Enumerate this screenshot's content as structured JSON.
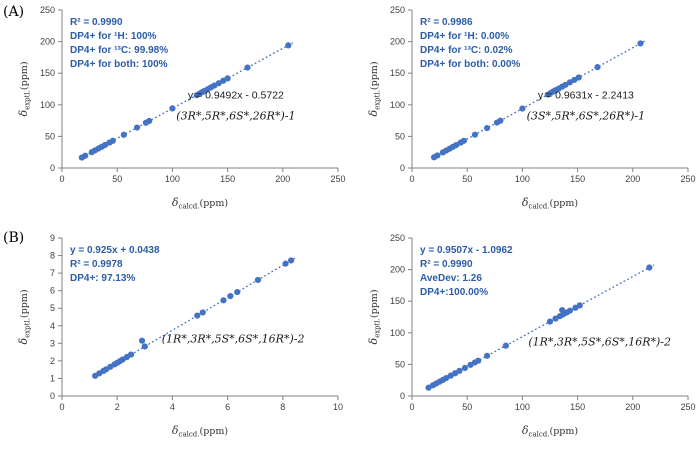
{
  "figure": {
    "panel_a_label": "(A)",
    "panel_b_label": "(B)"
  },
  "colors": {
    "marker": "#4472C4",
    "trend": "#4472C4",
    "blue_text": "#2A5CAA",
    "black_text": "#1a1a1a",
    "axis": "#808080",
    "tick_text": "#404040"
  },
  "chart_data": [
    {
      "type": "scatter",
      "panel": "A-left",
      "xlabel": {
        "sym": "δ",
        "sub": "calcd.",
        "unit": "(ppm)"
      },
      "ylabel": {
        "sym": "δ",
        "sub": "exptl.",
        "unit": "(ppm)"
      },
      "xlim": [
        0,
        250
      ],
      "ylim": [
        0,
        250
      ],
      "xticks": [
        0,
        50,
        100,
        150,
        200,
        250
      ],
      "yticks": [
        0,
        50,
        100,
        150,
        200,
        250
      ],
      "grid": false,
      "legend": "none",
      "blue_annotations": [
        "R² = 0.9990",
        "DP4+ for ¹H: 100%",
        "DP4+ for ¹³C: 99.98%",
        "DP4+ for both: 100%"
      ],
      "black_annotations": [
        "y = 0.9492x - 0.5722",
        "(3R*,5R*,6S*,26R*)-1"
      ],
      "trendline": {
        "slope": 0.9492,
        "intercept": -0.5722
      },
      "points": [
        [
          18,
          16.5
        ],
        [
          21,
          19.4
        ],
        [
          27,
          25.1
        ],
        [
          30,
          27.9
        ],
        [
          33,
          30.8
        ],
        [
          36,
          33.6
        ],
        [
          39,
          36.4
        ],
        [
          43,
          40.2
        ],
        [
          46,
          43.1
        ],
        [
          56,
          52.6
        ],
        [
          68,
          64.0
        ],
        [
          76,
          71.6
        ],
        [
          79,
          74.4
        ],
        [
          100,
          94.3
        ],
        [
          122,
          115.2
        ],
        [
          125,
          118.1
        ],
        [
          127,
          120.0
        ],
        [
          129,
          121.9
        ],
        [
          132,
          124.7
        ],
        [
          135,
          127.6
        ],
        [
          138,
          130.4
        ],
        [
          142,
          134.2
        ],
        [
          146,
          138.0
        ],
        [
          150,
          141.8
        ],
        [
          168,
          158.9
        ],
        [
          205,
          194.0
        ]
      ]
    },
    {
      "type": "scatter",
      "panel": "A-right",
      "xlabel": {
        "sym": "δ",
        "sub": "calcd.",
        "unit": "(ppm)"
      },
      "ylabel": {
        "sym": "δ",
        "sub": "exptl.",
        "unit": "(ppm)"
      },
      "xlim": [
        0,
        250
      ],
      "ylim": [
        0,
        250
      ],
      "xticks": [
        0,
        50,
        100,
        150,
        200,
        250
      ],
      "yticks": [
        0,
        50,
        100,
        150,
        200,
        250
      ],
      "grid": false,
      "legend": "none",
      "blue_annotations": [
        "R² = 0.9986",
        "DP4+ for ¹H: 0.00%",
        "DP4+ for ¹³C: 0.02%",
        "DP4+ for both: 0.00%"
      ],
      "black_annotations": [
        "y = 0.9631x - 2.2413",
        "(3S*,5R*,6S*,26R*)-1"
      ],
      "trendline": {
        "slope": 0.9631,
        "intercept": -2.2413
      },
      "points": [
        [
          20,
          17.0
        ],
        [
          23,
          19.9
        ],
        [
          28,
          24.7
        ],
        [
          31,
          27.6
        ],
        [
          34,
          30.5
        ],
        [
          37,
          33.4
        ],
        [
          40,
          36.3
        ],
        [
          44,
          40.1
        ],
        [
          47,
          43.0
        ],
        [
          57,
          52.7
        ],
        [
          68,
          63.2
        ],
        [
          77,
          71.9
        ],
        [
          80,
          74.8
        ],
        [
          100,
          94.1
        ],
        [
          123,
          116.2
        ],
        [
          126,
          119.1
        ],
        [
          128,
          121.0
        ],
        [
          130,
          123.0
        ],
        [
          133,
          125.9
        ],
        [
          136,
          128.7
        ],
        [
          139,
          131.6
        ],
        [
          143,
          135.5
        ],
        [
          147,
          139.3
        ],
        [
          151,
          143.2
        ],
        [
          168,
          159.6
        ],
        [
          207,
          197.1
        ]
      ]
    },
    {
      "type": "scatter",
      "panel": "B-left",
      "xlabel": {
        "sym": "δ",
        "sub": "calcd.",
        "unit": "(ppm)"
      },
      "ylabel": {
        "sym": "δ",
        "sub": "exptl.",
        "unit": "(ppm)"
      },
      "xlim": [
        0,
        10
      ],
      "ylim": [
        0,
        9
      ],
      "xticks": [
        0,
        2,
        4,
        6,
        8,
        10
      ],
      "yticks": [
        0,
        1,
        2,
        3,
        4,
        5,
        6,
        7,
        8,
        9
      ],
      "grid": false,
      "legend": "none",
      "blue_annotations": [
        "y = 0.925x + 0.0438",
        "R² = 0.9978",
        "DP4+: 97.13%"
      ],
      "black_annotations": [
        "(1R*,3R*,5S*,6S*,16R*)-2"
      ],
      "trendline": {
        "slope": 0.925,
        "intercept": 0.0438
      },
      "points": [
        [
          1.2,
          1.15
        ],
        [
          1.35,
          1.29
        ],
        [
          1.5,
          1.43
        ],
        [
          1.6,
          1.52
        ],
        [
          1.75,
          1.66
        ],
        [
          1.9,
          1.8
        ],
        [
          2.0,
          1.89
        ],
        [
          2.1,
          1.99
        ],
        [
          2.2,
          2.08
        ],
        [
          2.35,
          2.22
        ],
        [
          2.5,
          2.36
        ],
        [
          2.9,
          3.15
        ],
        [
          3.0,
          2.82
        ],
        [
          4.9,
          4.58
        ],
        [
          5.1,
          4.76
        ],
        [
          5.85,
          5.45
        ],
        [
          6.1,
          5.69
        ],
        [
          6.35,
          5.92
        ],
        [
          7.1,
          6.61
        ],
        [
          8.1,
          7.54
        ],
        [
          8.3,
          7.72
        ]
      ]
    },
    {
      "type": "scatter",
      "panel": "B-right",
      "xlabel": {
        "sym": "δ",
        "sub": "calcd.",
        "unit": "(ppm)"
      },
      "ylabel": {
        "sym": "δ",
        "sub": "exptl.",
        "unit": "(ppm)"
      },
      "xlim": [
        0,
        250
      ],
      "ylim": [
        0,
        250
      ],
      "xticks": [
        0,
        50,
        100,
        150,
        200,
        250
      ],
      "yticks": [
        0,
        50,
        100,
        150,
        200,
        250
      ],
      "grid": false,
      "legend": "none",
      "blue_annotations": [
        "y = 0.9507x - 1.0962",
        "R² = 0.9990",
        "AveDev: 1.26",
        "DP4+:100.00%"
      ],
      "black_annotations": [
        "(1R*,3R*,5S*,6S*,16R*)-2"
      ],
      "trendline": {
        "slope": 0.9507,
        "intercept": -1.0962
      },
      "points": [
        [
          15,
          13.2
        ],
        [
          19,
          17.0
        ],
        [
          22,
          19.8
        ],
        [
          25,
          22.7
        ],
        [
          28,
          25.5
        ],
        [
          31,
          28.4
        ],
        [
          35,
          32.2
        ],
        [
          39,
          36.0
        ],
        [
          43,
          39.8
        ],
        [
          48,
          44.5
        ],
        [
          53,
          49.3
        ],
        [
          57,
          53.1
        ],
        [
          60,
          55.9
        ],
        [
          68,
          63.6
        ],
        [
          85,
          79.7
        ],
        [
          125,
          117.7
        ],
        [
          130,
          122.5
        ],
        [
          134,
          126.3
        ],
        [
          136,
          136.0
        ],
        [
          137,
          129.2
        ],
        [
          140,
          132.0
        ],
        [
          143,
          134.9
        ],
        [
          148,
          139.6
        ],
        [
          152,
          143.4
        ],
        [
          215,
          203.3
        ]
      ]
    }
  ]
}
